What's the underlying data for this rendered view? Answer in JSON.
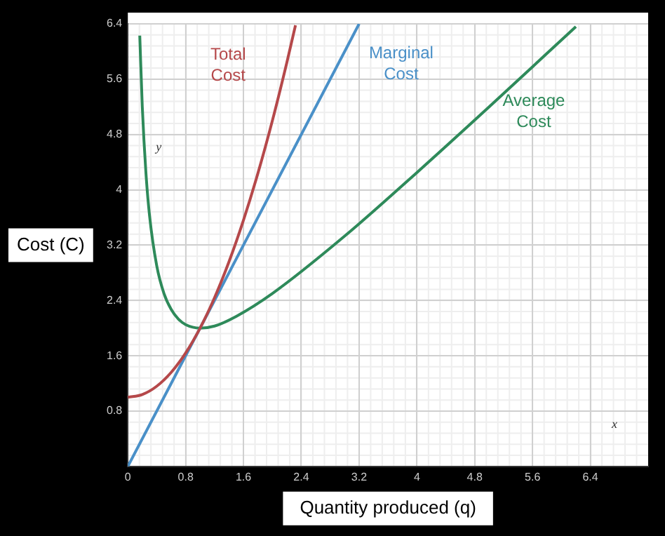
{
  "chart_data": {
    "type": "line",
    "xlabel": "Quantity produced (q)",
    "ylabel": "Cost (C)",
    "xlim": [
      0,
      7.2
    ],
    "ylim": [
      0,
      6.4
    ],
    "xticks": [
      0,
      0.8,
      1.6,
      2.4,
      3.2,
      4,
      4.8,
      5.6,
      6.4
    ],
    "yticks": [
      0.8,
      1.6,
      2.4,
      3.2,
      4,
      4.8,
      5.6,
      6.4
    ],
    "grid": true,
    "legend": false,
    "marker": "none",
    "line_style": "solid",
    "annotations": [
      "y",
      "x"
    ],
    "series": [
      {
        "name": "Total Cost",
        "color": "#b5484a",
        "x": [
          0,
          0.2,
          0.4,
          0.6,
          0.8,
          1,
          1.2,
          1.4,
          1.6,
          1.8,
          2,
          2.2,
          2.32
        ],
        "values": [
          1,
          1.04,
          1.16,
          1.36,
          1.64,
          2,
          2.44,
          2.96,
          3.56,
          4.24,
          5,
          5.84,
          6.38
        ]
      },
      {
        "name": "Marginal Cost",
        "color": "#4a90c8",
        "x": [
          0,
          3.2
        ],
        "values": [
          0,
          6.4
        ]
      },
      {
        "name": "Average Cost",
        "color": "#2e8a5a",
        "x": [
          0.165,
          0.2,
          0.25,
          0.3,
          0.4,
          0.5,
          0.6,
          0.7,
          0.8,
          1,
          1.2,
          1.5,
          2,
          3,
          4,
          5,
          6.2
        ],
        "values": [
          6.23,
          5.2,
          4.25,
          3.63,
          2.9,
          2.5,
          2.27,
          2.13,
          2.05,
          2,
          2.03,
          2.17,
          2.5,
          3.33,
          4.25,
          5.2,
          6.36
        ]
      }
    ]
  }
}
